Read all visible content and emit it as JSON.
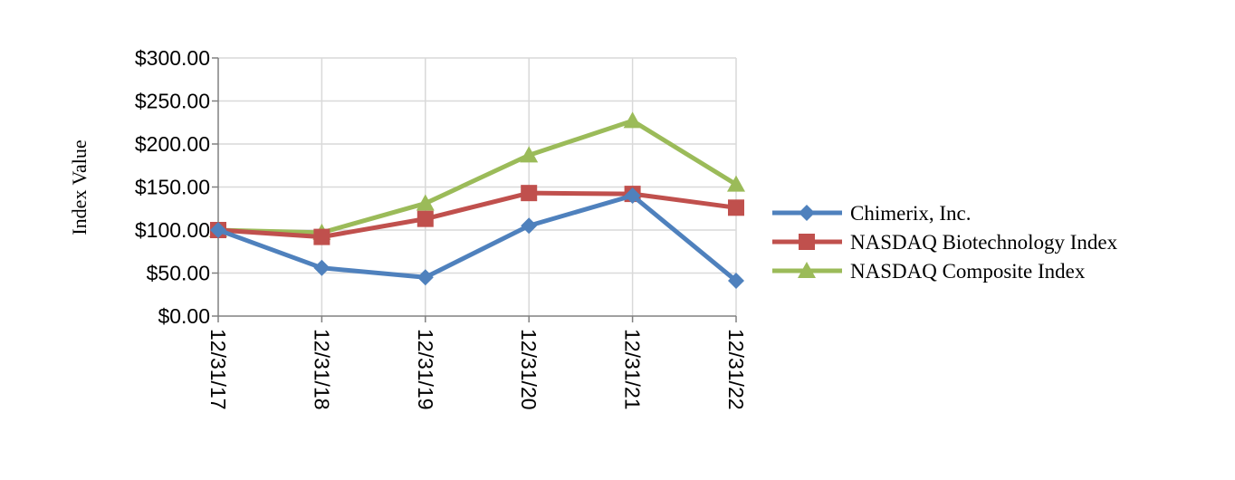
{
  "chart_data": {
    "type": "line",
    "categories": [
      "12/31/17",
      "12/31/18",
      "12/31/19",
      "12/31/20",
      "12/31/21",
      "12/31/22"
    ],
    "series": [
      {
        "name": "Chimerix, Inc.",
        "values": [
          100,
          56,
          45,
          105,
          140,
          41
        ],
        "color": "#4f81bd",
        "marker": "diamond"
      },
      {
        "name": "NASDAQ Biotechnology Index",
        "values": [
          100,
          92,
          113,
          143,
          142,
          126
        ],
        "color": "#c0504d",
        "marker": "square"
      },
      {
        "name": "NASDAQ Composite Index",
        "values": [
          100,
          97,
          131,
          187,
          227,
          153
        ],
        "color": "#9bbb59",
        "marker": "triangle"
      }
    ],
    "yticks": [
      "$0.00",
      "$50.00",
      "$100.00",
      "$150.00",
      "$200.00",
      "$250.00",
      "$300.00"
    ],
    "ytick_values": [
      0,
      50,
      100,
      150,
      200,
      250,
      300
    ],
    "ylabel": "Index Value",
    "xlabel": "",
    "ylim": [
      0,
      300
    ],
    "grid": true,
    "legend_position": "right"
  }
}
